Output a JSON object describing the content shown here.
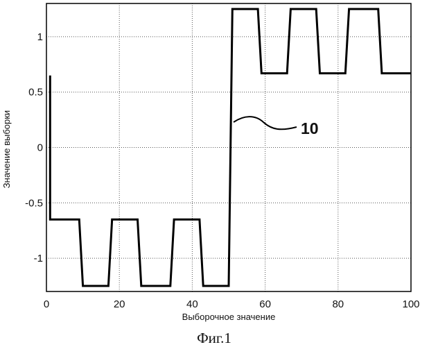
{
  "chart_data": {
    "type": "line",
    "title": "",
    "xlabel": "Выборочное значение",
    "ylabel": "Значение выборки",
    "xlim": [
      0,
      100
    ],
    "ylim": [
      -1.3,
      1.3
    ],
    "x_ticks": [
      "0",
      "20",
      "40",
      "60",
      "80",
      "100"
    ],
    "y_ticks": [
      "-1",
      "-0.5",
      "0",
      "0.5",
      "1"
    ],
    "grid": true,
    "series": [
      {
        "x": [
          1,
          1,
          2,
          9,
          10,
          17,
          18,
          25,
          26,
          34,
          35,
          42,
          43,
          50,
          51,
          58,
          59,
          66,
          67,
          74,
          75,
          82,
          83,
          91,
          92,
          100
        ],
        "y": [
          0.65,
          -0.65,
          -0.65,
          -0.65,
          -1.25,
          -1.25,
          -0.65,
          -0.65,
          -1.25,
          -1.25,
          -0.65,
          -0.65,
          -1.25,
          -1.25,
          1.25,
          1.25,
          0.67,
          0.67,
          1.25,
          1.25,
          0.67,
          0.67,
          1.25,
          1.25,
          0.67,
          0.67
        ]
      }
    ],
    "annotation": "10",
    "caption": "Фиг.1"
  }
}
